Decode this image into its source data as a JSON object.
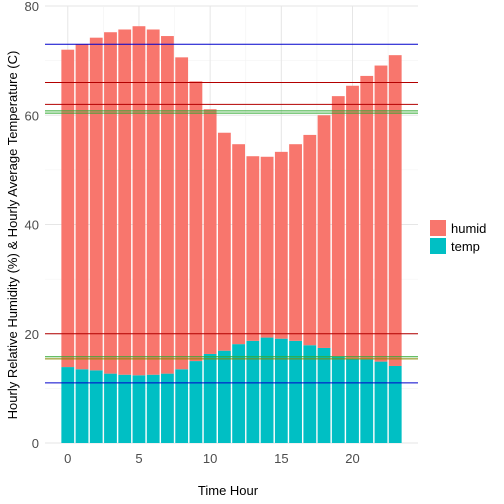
{
  "chart_data": {
    "type": "bar",
    "stacked": true,
    "xlabel": "Time Hour",
    "ylabel": "Hourly Relative Humidity (%) & Hourly Average Temperature (C)",
    "xlim": [
      -1.6,
      24.6
    ],
    "ylim": [
      0,
      80
    ],
    "xticks": [
      0,
      5,
      10,
      15,
      20
    ],
    "yticks": [
      0,
      20,
      40,
      60,
      80
    ],
    "grid": true,
    "legend_position": "right",
    "categories": [
      0,
      1,
      2,
      3,
      4,
      5,
      6,
      7,
      8,
      9,
      10,
      11,
      12,
      13,
      14,
      15,
      16,
      17,
      18,
      19,
      20,
      21,
      22,
      23
    ],
    "series": [
      {
        "name": "humid",
        "color": "#F8766D",
        "values": [
          58.1,
          59.5,
          60.9,
          62.5,
          63.2,
          63.9,
          63.2,
          61.8,
          57.1,
          51.2,
          44.8,
          39.9,
          36.6,
          33.8,
          33.1,
          34.2,
          36.0,
          38.5,
          42.6,
          47.6,
          49.9,
          51.9,
          54.2,
          56.9
        ]
      },
      {
        "name": "temp",
        "color": "#00BFC4",
        "values": [
          13.9,
          13.5,
          13.3,
          12.7,
          12.5,
          12.4,
          12.5,
          12.7,
          13.5,
          15.0,
          16.3,
          16.9,
          18.1,
          18.7,
          19.3,
          19.1,
          18.7,
          17.9,
          17.4,
          15.9,
          15.5,
          15.3,
          14.9,
          14.1
        ]
      }
    ],
    "reference_lines": [
      {
        "y": 73.0,
        "color": "#0000cc"
      },
      {
        "y": 66.0,
        "color": "#b30000"
      },
      {
        "y": 62.0,
        "color": "#b30000"
      },
      {
        "y": 60.8,
        "color": "#33aa33"
      },
      {
        "y": 60.4,
        "color": "#33aa33"
      },
      {
        "y": 20.0,
        "color": "#b30000"
      },
      {
        "y": 15.8,
        "color": "#33aa33"
      },
      {
        "y": 15.4,
        "color": "#888800"
      },
      {
        "y": 11.0,
        "color": "#0000cc"
      }
    ]
  }
}
